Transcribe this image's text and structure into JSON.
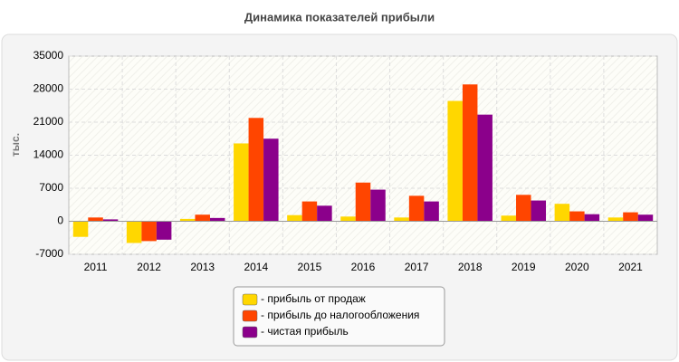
{
  "chart_data": {
    "type": "bar",
    "title": "Динамика показателей прибыли",
    "y_label": "тыс.",
    "categories": [
      "2011",
      "2012",
      "2013",
      "2014",
      "2015",
      "2016",
      "2017",
      "2018",
      "2019",
      "2020",
      "2021"
    ],
    "series": [
      {
        "name": "- прибыль от продаж",
        "color": "#ffd700",
        "values": [
          -3300,
          -4600,
          500,
          16500,
          1300,
          1000,
          800,
          25500,
          1200,
          3700,
          800
        ]
      },
      {
        "name": "- прибыль до налогообложения",
        "color": "#ff4500",
        "values": [
          800,
          -4200,
          1400,
          21900,
          4200,
          8200,
          5400,
          29000,
          5600,
          2100,
          1900
        ]
      },
      {
        "name": "- чистая прибыль",
        "color": "#8b008b",
        "values": [
          400,
          -3900,
          700,
          17500,
          3300,
          6700,
          4200,
          22600,
          4400,
          1500,
          1400
        ]
      }
    ],
    "ylim": [
      -7000,
      35000
    ],
    "yticks": [
      -7000,
      0,
      7000,
      14000,
      21000,
      28000,
      35000
    ],
    "grid": true
  }
}
